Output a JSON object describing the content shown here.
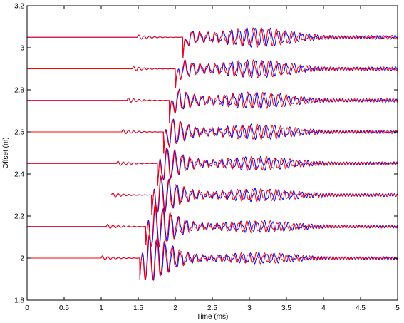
{
  "chart_data": {
    "type": "line",
    "xlabel": "Time (ms)",
    "ylabel": "Offset (m)",
    "xlim": [
      0,
      5
    ],
    "ylim": [
      1.8,
      3.2
    ],
    "x_ticks": [
      0,
      0.5,
      1,
      1.5,
      2,
      2.5,
      3,
      3.5,
      4,
      4.5,
      5
    ],
    "x_tick_labels": [
      "0",
      "0.5",
      "1",
      "1.5",
      "2",
      "2.5",
      "3",
      "3.5",
      "4",
      "4.5",
      "5"
    ],
    "y_ticks": [
      1.8,
      2.0,
      2.2,
      2.4,
      2.6,
      2.8,
      3.0,
      3.2
    ],
    "y_tick_labels": [
      "1.8",
      "2",
      "2.2",
      "2.4",
      "2.6",
      "2.8",
      "3",
      "3.2"
    ],
    "grid": false,
    "legend": "none",
    "trace_offsets_m": [
      2.0,
      2.15,
      2.3,
      2.45,
      2.6,
      2.75,
      2.9,
      3.05
    ],
    "first_arrival_ms": [
      1.0,
      1.07,
      1.14,
      1.21,
      1.28,
      1.35,
      1.42,
      1.49
    ],
    "main_arrival_ms": [
      1.52,
      1.6,
      1.68,
      1.76,
      1.84,
      1.92,
      2.0,
      2.1
    ],
    "series": [
      {
        "color": "#0000ff",
        "description_style": "solid"
      },
      {
        "color": "#ff0000",
        "description_style": "solid"
      }
    ]
  }
}
